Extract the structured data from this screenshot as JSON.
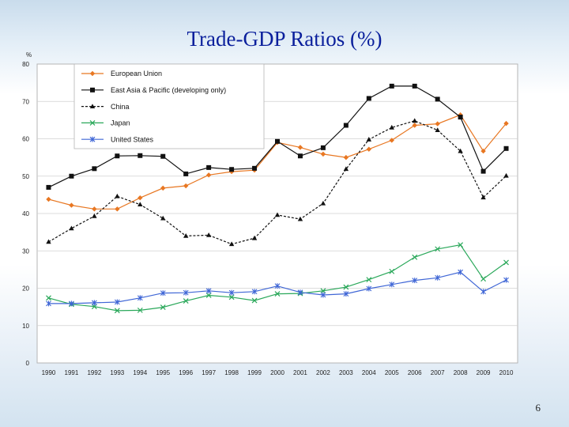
{
  "slide": {
    "title": "Trade-GDP Ratios (%)",
    "page_number": "6"
  },
  "chart_data": {
    "type": "line",
    "title": "Trade-GDP Ratios (%)",
    "ylabel": "%",
    "xlabel": "",
    "ylim": [
      0,
      80
    ],
    "y_ticks": [
      0,
      10,
      20,
      30,
      40,
      50,
      60,
      70,
      80
    ],
    "grid": true,
    "legend_position": "top-left",
    "categories": [
      "1990",
      "1991",
      "1992",
      "1993",
      "1994",
      "1995",
      "1996",
      "1997",
      "1998",
      "1999",
      "2000",
      "2001",
      "2002",
      "2003",
      "2004",
      "2005",
      "2006",
      "2007",
      "2008",
      "2009",
      "2010"
    ],
    "series": [
      {
        "name": "European Union",
        "color": "#e87722",
        "marker": "diamond",
        "dash": "solid",
        "values": [
          43.8,
          42.2,
          41.2,
          41.2,
          44.2,
          46.8,
          47.4,
          50.3,
          51.2,
          51.6,
          59.0,
          57.7,
          55.9,
          55.0,
          57.2,
          59.6,
          63.6,
          64.0,
          66.4,
          56.7,
          64.1
        ]
      },
      {
        "name": "East Asia & Pacific (developing only)",
        "color": "#111111",
        "marker": "square",
        "dash": "solid",
        "values": [
          47.0,
          50.0,
          52.0,
          55.4,
          55.5,
          55.3,
          50.6,
          52.3,
          51.8,
          52.1,
          59.3,
          55.4,
          57.6,
          63.6,
          70.8,
          74.1,
          74.1,
          70.6,
          65.8,
          51.3,
          57.4
        ]
      },
      {
        "name": "China",
        "color": "#111111",
        "marker": "triangle",
        "dash": "dashed",
        "values": [
          32.4,
          36.0,
          39.3,
          44.6,
          42.4,
          38.7,
          34.0,
          34.2,
          31.8,
          33.4,
          39.6,
          38.5,
          42.7,
          51.9,
          59.8,
          63.0,
          64.8,
          62.3,
          56.7,
          44.3,
          50.1
        ]
      },
      {
        "name": "Japan",
        "color": "#2aa85a",
        "marker": "x",
        "dash": "solid",
        "values": [
          17.4,
          15.7,
          15.1,
          14.0,
          14.1,
          14.9,
          16.6,
          18.1,
          17.6,
          16.7,
          18.5,
          18.6,
          19.3,
          20.3,
          22.3,
          24.5,
          28.3,
          30.5,
          31.6,
          22.5,
          26.9
        ]
      },
      {
        "name": "United States",
        "color": "#3f66d6",
        "marker": "star",
        "dash": "solid",
        "values": [
          15.9,
          15.9,
          16.1,
          16.3,
          17.4,
          18.7,
          18.8,
          19.3,
          18.8,
          19.1,
          20.6,
          18.9,
          18.2,
          18.5,
          19.9,
          21.0,
          22.1,
          22.8,
          24.3,
          19.1,
          22.2
        ]
      }
    ]
  }
}
